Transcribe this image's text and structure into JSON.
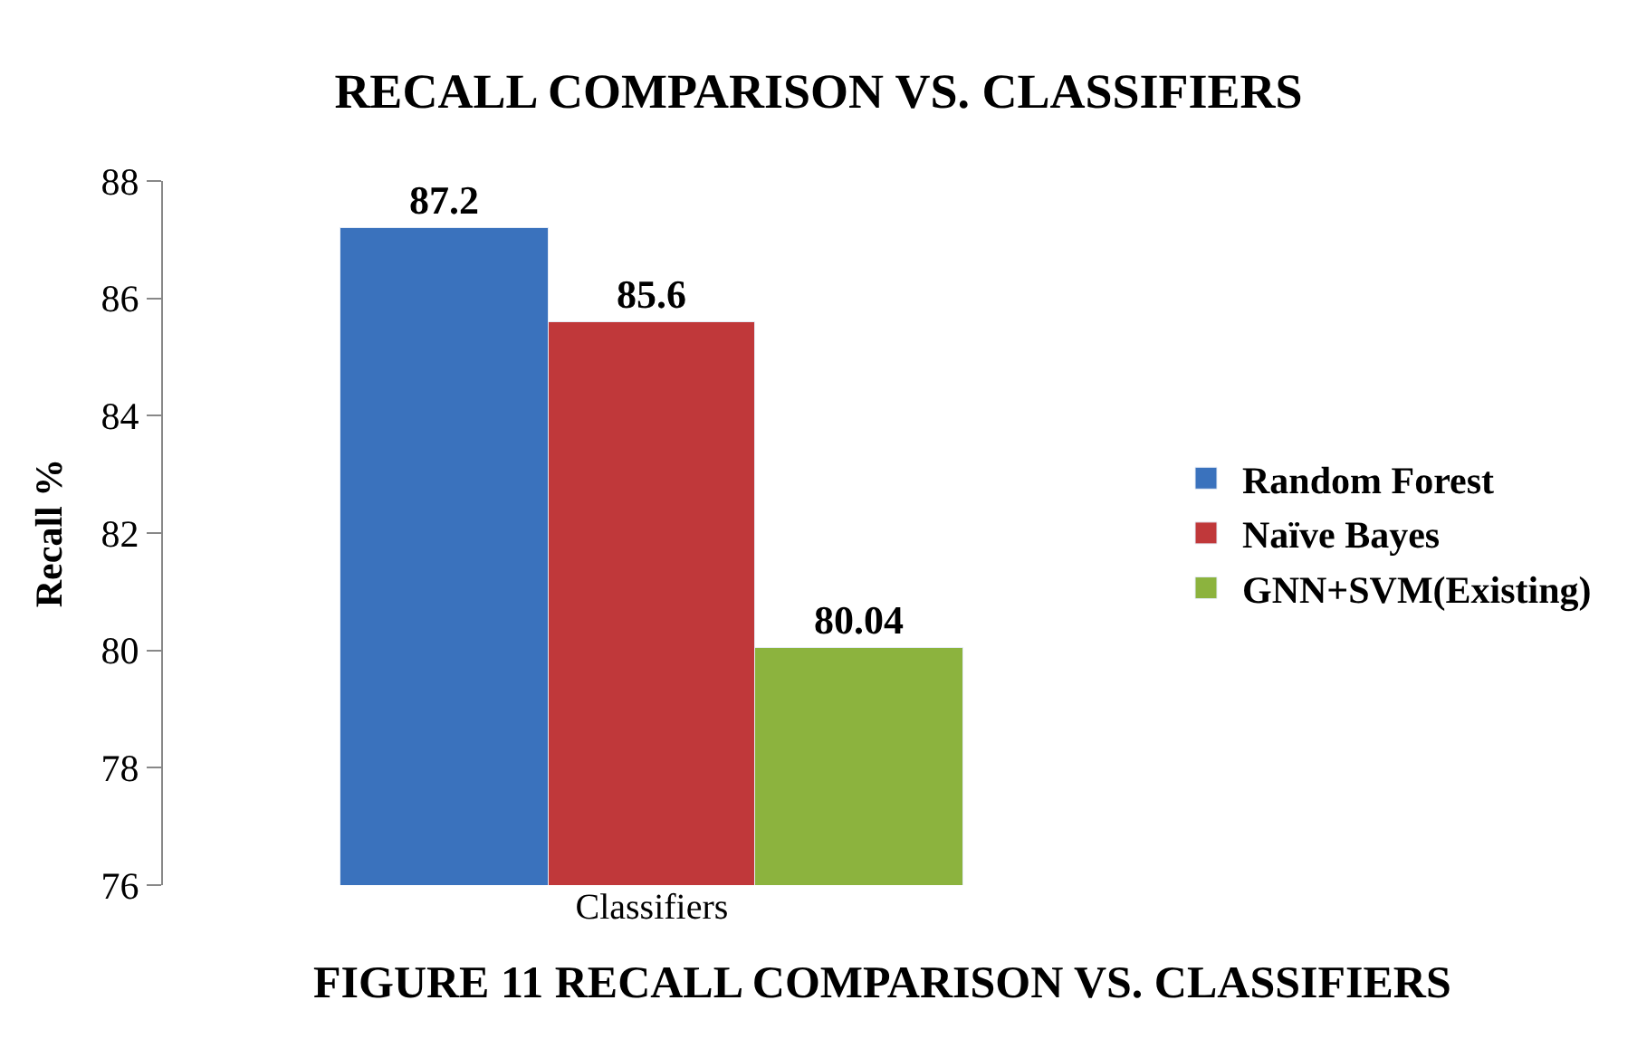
{
  "chart_data": {
    "type": "bar",
    "title": "RECALL COMPARISON VS. CLASSIFIERS",
    "xlabel": "Classifiers",
    "ylabel": "Recall %",
    "categories": [
      null,
      null,
      null
    ],
    "series": [
      {
        "name": "Random Forest",
        "color": "#3a72bd",
        "values": [
          87.2,
          null,
          null
        ]
      },
      {
        "name": "Naïve Bayes",
        "color": "#c0383a",
        "values": [
          null,
          85.6,
          null
        ]
      },
      {
        "name": "GNN+SVM(Existing)",
        "color": "#8cb33e",
        "values": [
          null,
          null,
          80.04
        ]
      }
    ],
    "ylim": [
      76,
      88
    ],
    "yticks": [
      76,
      78,
      80,
      82,
      84,
      86,
      88
    ],
    "stacked": true,
    "legend": "right",
    "data_labels": true,
    "annotations": [
      "FIGURE 11 RECALL COMPARISON VS. CLASSIFIERS"
    ]
  }
}
